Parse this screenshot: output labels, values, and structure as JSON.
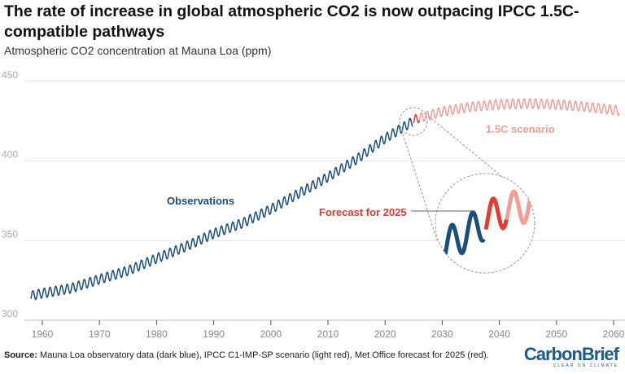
{
  "title": "The rate of increase in global atmospheric CO2 is now outpacing IPCC 1.5C-compatible pathways",
  "subtitle": "Atmospheric CO2 concentration at Mauna Loa (ppm)",
  "source_label": "Source:",
  "source_text": " Mauna Loa observatory data (dark blue), IPCC C1-IMP-SP scenario (light red), Met Office forecast for 2025 (red).",
  "logo": {
    "text": "CarbonBrief",
    "tagline": "CLEAR ON CLIMATE"
  },
  "chart_data": {
    "type": "line",
    "xlim": [
      1957,
      2062
    ],
    "ylim": [
      300,
      450
    ],
    "x_ticks": [
      1960,
      1970,
      1980,
      1990,
      2000,
      2010,
      2020,
      2030,
      2040,
      2050,
      2060
    ],
    "y_ticks": [
      300,
      350,
      400,
      450
    ],
    "grid": "horizontal",
    "seasonal_amplitude_ppm": 3,
    "series": [
      {
        "name": "Observations",
        "color": "#1a4e7e",
        "x": [
          1958,
          1960,
          1965,
          1970,
          1975,
          1980,
          1985,
          1990,
          1995,
          2000,
          2005,
          2010,
          2015,
          2020,
          2024.9
        ],
        "y": [
          315.3,
          316.9,
          320.0,
          325.7,
          331.1,
          338.8,
          346.1,
          354.4,
          360.9,
          369.7,
          379.8,
          389.9,
          401.0,
          414.2,
          424.9
        ]
      },
      {
        "name": "Forecast for 2025",
        "color": "#e03c31",
        "x": [
          2025,
          2026
        ],
        "y": [
          425.5,
          427.2
        ]
      },
      {
        "name": "1.5C scenario",
        "color": "#f19e96",
        "x": [
          2026,
          2030,
          2035,
          2040,
          2045,
          2050,
          2055,
          2060,
          2061
        ],
        "y": [
          427.0,
          431.0,
          434.0,
          435.5,
          436.0,
          435.5,
          434.0,
          432.0,
          431.5
        ]
      }
    ]
  }
}
